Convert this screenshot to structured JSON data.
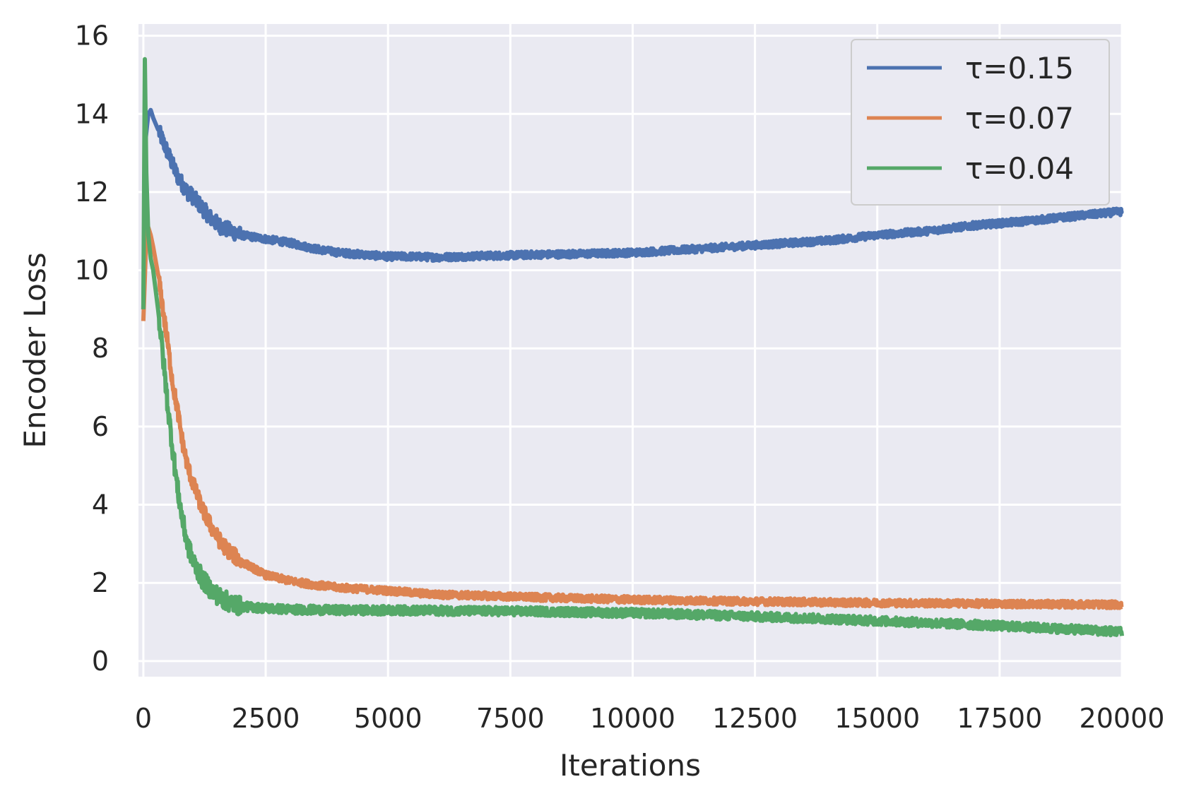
{
  "chart_data": {
    "type": "line",
    "title": "",
    "xlabel": "Iterations",
    "ylabel": "Encoder Loss",
    "xlim": [
      -100,
      20000
    ],
    "ylim": [
      -0.4,
      16.3
    ],
    "xticks": [
      0,
      2500,
      5000,
      7500,
      10000,
      12500,
      15000,
      17500,
      20000
    ],
    "xtick_labels": [
      "0",
      "2500",
      "5000",
      "7500",
      "10000",
      "12500",
      "15000",
      "17500",
      "20000"
    ],
    "yticks": [
      0,
      2,
      4,
      6,
      8,
      10,
      12,
      14,
      16
    ],
    "ytick_labels": [
      "0",
      "2",
      "4",
      "6",
      "8",
      "10",
      "12",
      "14",
      "16"
    ],
    "grid": true,
    "legend_position": "top-right",
    "series": [
      {
        "name": "τ=0.15",
        "color": "#4c72b0",
        "x": [
          0,
          50,
          100,
          150,
          200,
          300,
          400,
          500,
          600,
          700,
          800,
          900,
          1000,
          1200,
          1400,
          1600,
          1800,
          2000,
          2500,
          3000,
          3500,
          4000,
          4500,
          5000,
          5500,
          6000,
          6500,
          7000,
          7500,
          8000,
          9000,
          10000,
          11000,
          12000,
          13000,
          14000,
          15000,
          16000,
          17000,
          18000,
          19000,
          20000
        ],
        "y": [
          9.0,
          13.4,
          14.0,
          14.1,
          13.9,
          13.6,
          13.3,
          13.0,
          12.7,
          12.4,
          12.2,
          12.0,
          11.9,
          11.6,
          11.3,
          11.1,
          11.0,
          10.9,
          10.8,
          10.7,
          10.55,
          10.45,
          10.4,
          10.35,
          10.35,
          10.33,
          10.35,
          10.37,
          10.38,
          10.4,
          10.42,
          10.45,
          10.52,
          10.6,
          10.68,
          10.76,
          10.9,
          11.0,
          11.15,
          11.25,
          11.38,
          11.5
        ]
      },
      {
        "name": "τ=0.07",
        "color": "#dd8452",
        "x": [
          0,
          50,
          100,
          150,
          200,
          300,
          400,
          500,
          600,
          700,
          800,
          900,
          1000,
          1200,
          1400,
          1600,
          1800,
          2000,
          2500,
          3000,
          3500,
          4000,
          5000,
          6000,
          7000,
          8000,
          9000,
          10000,
          11000,
          12000,
          13000,
          14000,
          15000,
          16000,
          17000,
          18000,
          19000,
          20000
        ],
        "y": [
          8.7,
          10.5,
          11.1,
          10.9,
          10.6,
          9.9,
          9.0,
          8.1,
          7.1,
          6.4,
          5.6,
          5.0,
          4.6,
          3.9,
          3.4,
          3.0,
          2.75,
          2.55,
          2.2,
          2.05,
          1.95,
          1.88,
          1.8,
          1.7,
          1.67,
          1.63,
          1.6,
          1.57,
          1.55,
          1.53,
          1.52,
          1.5,
          1.49,
          1.48,
          1.47,
          1.46,
          1.45,
          1.44
        ]
      },
      {
        "name": "τ=0.04",
        "color": "#55a868",
        "x": [
          0,
          30,
          60,
          100,
          150,
          200,
          300,
          400,
          500,
          600,
          700,
          800,
          900,
          1000,
          1200,
          1400,
          1600,
          1800,
          2000,
          2500,
          3000,
          4000,
          5000,
          6000,
          7000,
          8000,
          9000,
          10000,
          11000,
          12000,
          13000,
          14000,
          15000,
          16000,
          17000,
          18000,
          19000,
          20000
        ],
        "y": [
          9.0,
          15.4,
          12.5,
          10.9,
          10.3,
          10.0,
          9.0,
          7.8,
          6.5,
          5.4,
          4.4,
          3.6,
          3.0,
          2.6,
          2.1,
          1.8,
          1.6,
          1.48,
          1.4,
          1.35,
          1.32,
          1.3,
          1.3,
          1.29,
          1.28,
          1.27,
          1.25,
          1.23,
          1.2,
          1.16,
          1.12,
          1.08,
          1.03,
          0.98,
          0.93,
          0.87,
          0.81,
          0.75
        ]
      }
    ]
  }
}
